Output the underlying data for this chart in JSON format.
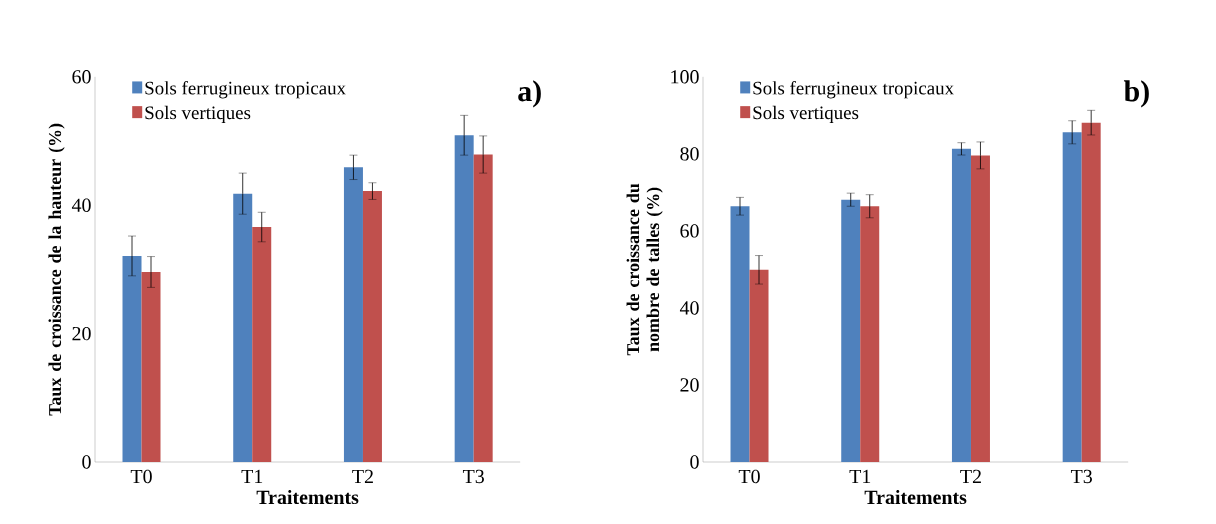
{
  "chart_data": [
    {
      "type": "bar",
      "categories": [
        "T0",
        "T1",
        "T2",
        "T3"
      ],
      "xlabel": "Traitements",
      "ylabel": "Taux de croissance de la hauteur (%)",
      "ylim": [
        0,
        60
      ],
      "yticks": [
        0,
        20,
        40,
        60
      ],
      "legend": "top left",
      "annotations": [
        "a)"
      ],
      "series": [
        {
          "name": "Sols ferrugineux tropicaux",
          "color": "#4f81bd",
          "values": [
            32.1,
            41.8,
            45.9,
            50.9
          ],
          "errors": [
            3.1,
            3.2,
            1.9,
            3.1
          ]
        },
        {
          "name": "Sols vertiques",
          "color": "#c0504d",
          "values": [
            29.6,
            36.6,
            42.2,
            47.9
          ],
          "errors": [
            2.4,
            2.3,
            1.3,
            2.9
          ]
        }
      ]
    },
    {
      "type": "bar",
      "categories": [
        "T0",
        "T1",
        "T2",
        "T3"
      ],
      "xlabel": "Traitements",
      "ylabel": "Taux de croissance du nombre de talles (%)",
      "ylim": [
        0,
        100
      ],
      "yticks": [
        0,
        20,
        40,
        60,
        80,
        100
      ],
      "legend": "top left",
      "annotations": [
        "b)"
      ],
      "series": [
        {
          "name": "Sols ferrugineux tropicaux",
          "color": "#4f81bd",
          "values": [
            66.4,
            68.1,
            81.3,
            85.6
          ],
          "errors": [
            2.3,
            1.7,
            1.6,
            3.0
          ]
        },
        {
          "name": "Sols vertiques",
          "color": "#c0504d",
          "values": [
            49.9,
            66.4,
            79.6,
            88.1
          ],
          "errors": [
            3.7,
            3.0,
            3.5,
            3.2
          ]
        }
      ]
    }
  ]
}
